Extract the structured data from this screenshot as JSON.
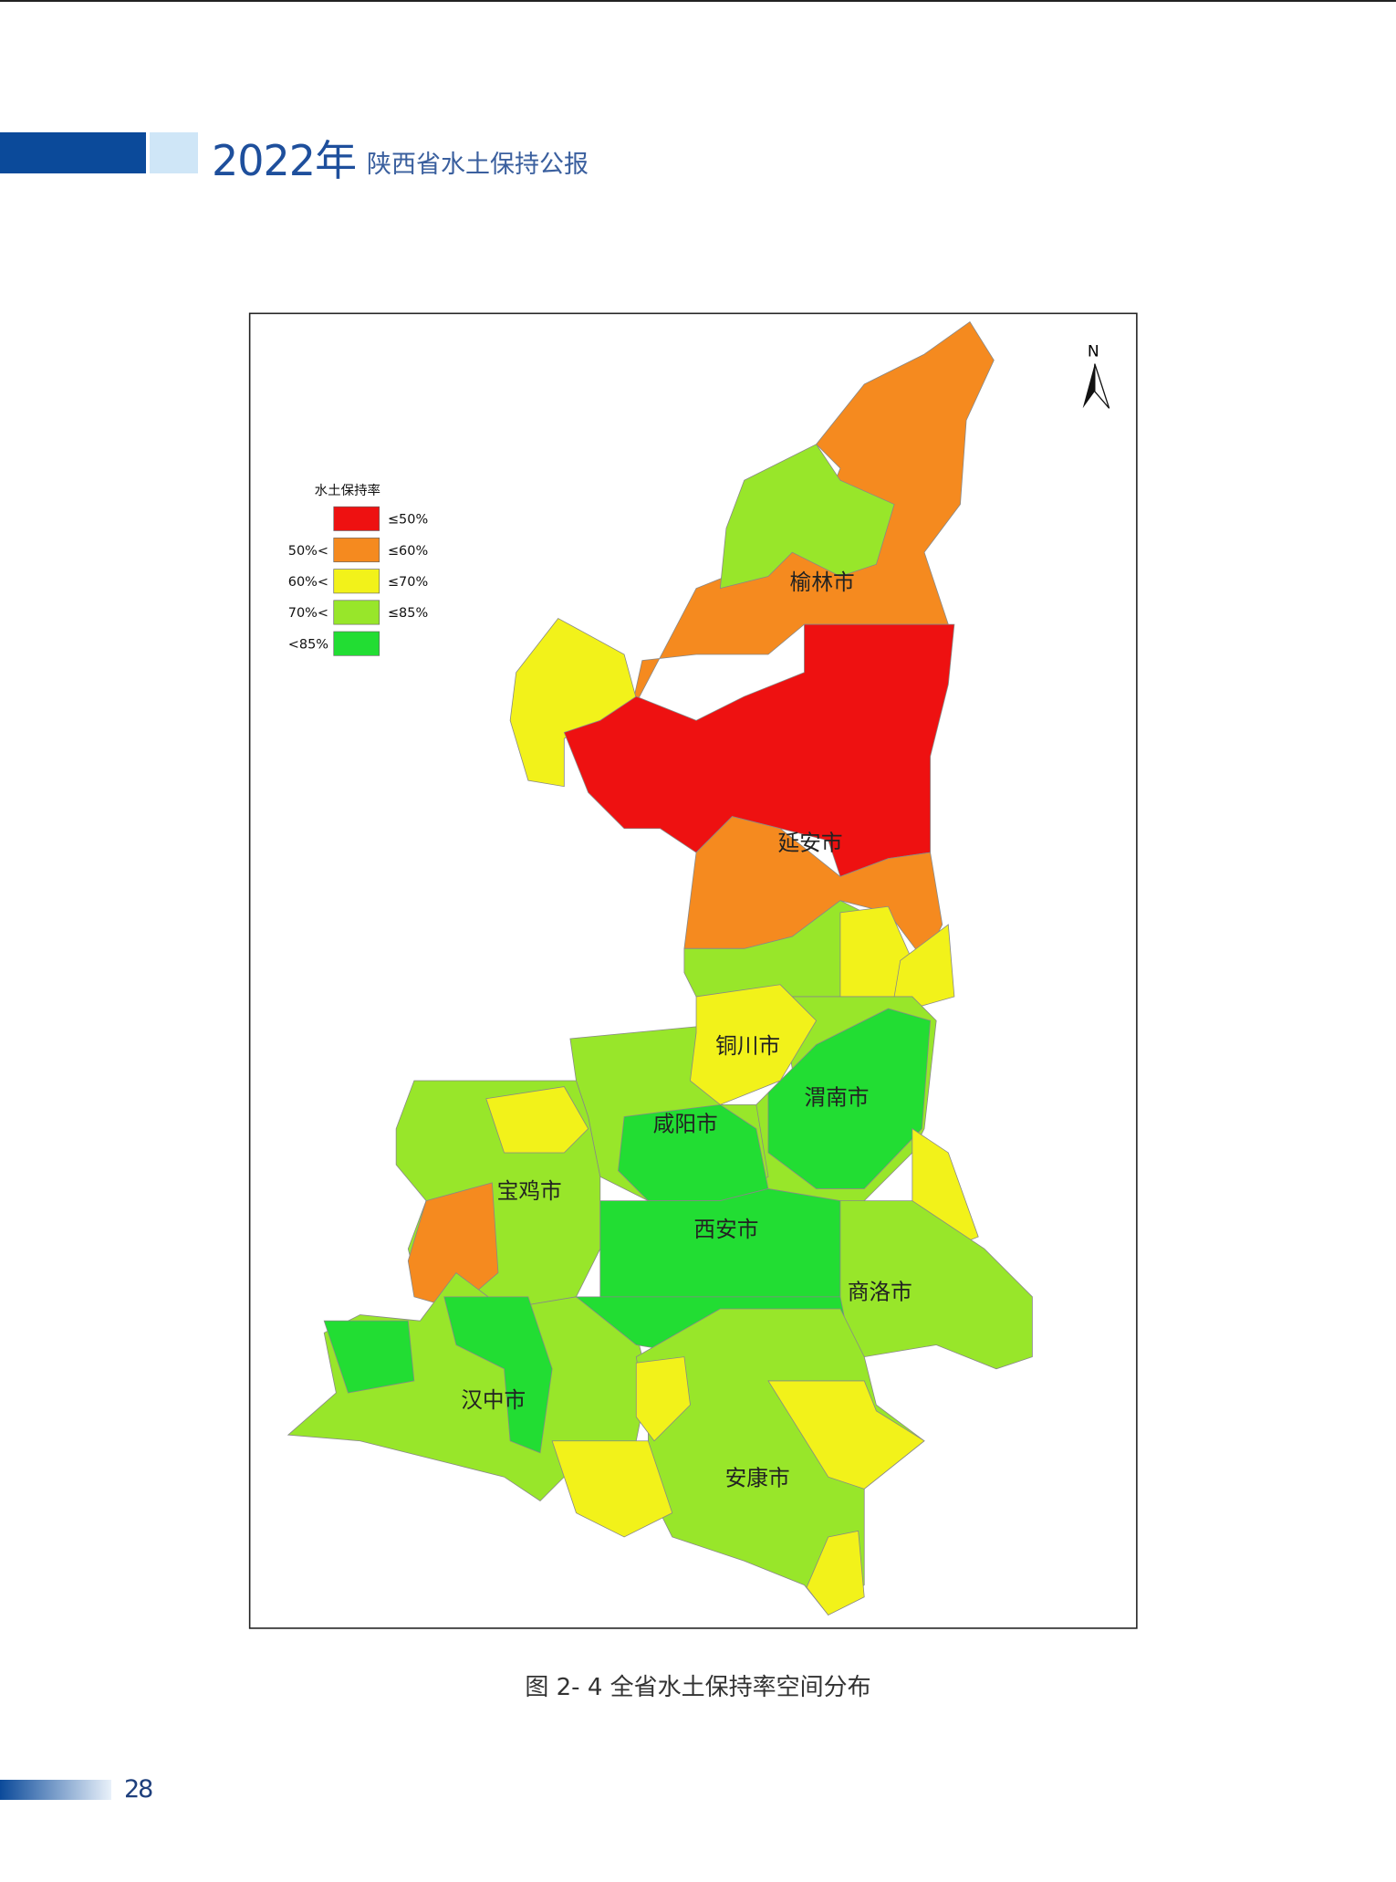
{
  "header": {
    "year": "2022年",
    "title": "陕西省水土保持公报"
  },
  "figure": {
    "north": "N",
    "legend": {
      "title": "水土保持率",
      "items": [
        {
          "to": "≤50%",
          "color": "#ee1111"
        },
        {
          "from": "50%<",
          "to": "≤60%",
          "color": "#f58a1f"
        },
        {
          "from": "60%<",
          "to": "≤70%",
          "color": "#f2f21a"
        },
        {
          "from": "70%<",
          "to": "≤85%",
          "color": "#98e62a"
        },
        {
          "from": "<85%",
          "color": "#22dd33"
        }
      ]
    },
    "cities": [
      "榆林市",
      "延安市",
      "铜川市",
      "渭南市",
      "咸阳市",
      "宝鸡市",
      "西安市",
      "商洛市",
      "汉中市",
      "安康市"
    ]
  },
  "caption": "图 2- 4 全省水土保持率空间分布",
  "page_number": "28"
}
